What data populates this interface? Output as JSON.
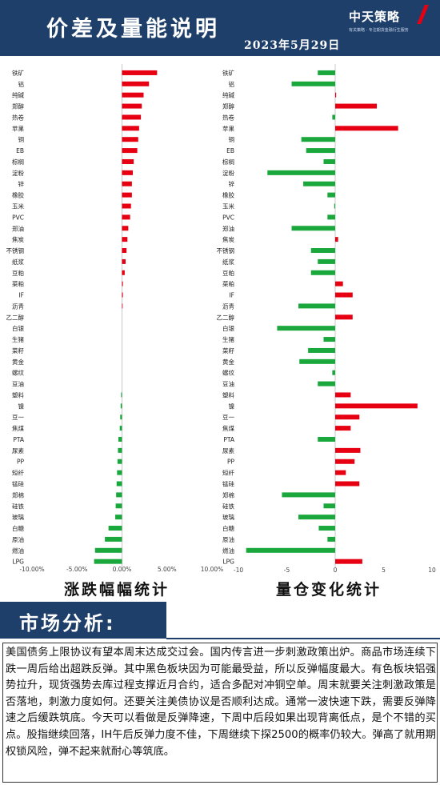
{
  "header": {
    "title": "价差及量能说明",
    "date": "2023年5月29日",
    "brand_name": "中天策略",
    "brand_slogan": "有关策略 · 专注期货金融衍生服务"
  },
  "chart_data": [
    {
      "type": "bar",
      "orientation": "horizontal",
      "title": "涨跌幅幅统计",
      "categories": [
        "铁矿",
        "铝",
        "纯碱",
        "郑醇",
        "热卷",
        "苹果",
        "铜",
        "EB",
        "棕榈",
        "淀粉",
        "锌",
        "橡胶",
        "玉米",
        "PVC",
        "郑油",
        "焦炭",
        "不锈钢",
        "纸浆",
        "豆粕",
        "菜粕",
        "IF",
        "沥青",
        "乙二醇",
        "白银",
        "生猪",
        "菜籽",
        "黄金",
        "螺纹",
        "豆油",
        "塑料",
        "镍",
        "豆一",
        "焦煤",
        "PTA",
        "尿素",
        "PP",
        "短纤",
        "锰硅",
        "郑棉",
        "硅铁",
        "玻璃",
        "白糖",
        "原油",
        "燃油",
        "LPG"
      ],
      "values": [
        3.9,
        3.0,
        2.4,
        2.2,
        2.1,
        1.9,
        1.8,
        1.7,
        1.3,
        1.2,
        1.1,
        1.1,
        1.0,
        0.9,
        0.7,
        0.6,
        0.5,
        0.4,
        0.3,
        0.1,
        0.1,
        0.05,
        0.0,
        0.0,
        0.0,
        0.0,
        0.0,
        0.0,
        0.0,
        -0.1,
        -0.15,
        -0.2,
        -0.25,
        -0.4,
        -0.45,
        -0.5,
        -0.55,
        -0.6,
        -0.65,
        -0.7,
        -0.75,
        -1.5,
        -1.9,
        -3.0,
        -3.1
      ],
      "xlim": [
        -10,
        10
      ],
      "xticks": [
        "-10.00%",
        "-5.00%",
        "0.00%",
        "5.00%",
        "10.00%"
      ],
      "colors": {
        "positive": "#e60012",
        "negative": "#1aa83c"
      },
      "grid": false
    },
    {
      "type": "bar",
      "orientation": "horizontal",
      "title": "量仓变化统计",
      "categories": [
        "铁矿",
        "铝",
        "纯碱",
        "郑醇",
        "热卷",
        "苹果",
        "铜",
        "EB",
        "棕榈",
        "淀粉",
        "锌",
        "橡胶",
        "玉米",
        "PVC",
        "郑油",
        "焦炭",
        "不锈钢",
        "纸浆",
        "豆粕",
        "菜粕",
        "IF",
        "沥青",
        "乙二醇",
        "白银",
        "生猪",
        "菜籽",
        "黄金",
        "螺纹",
        "豆油",
        "塑料",
        "镍",
        "豆一",
        "焦煤",
        "PTA",
        "尿素",
        "PP",
        "短纤",
        "锰硅",
        "郑棉",
        "硅铁",
        "玻璃",
        "白糖",
        "原油",
        "燃油",
        "LPG"
      ],
      "values": [
        -1.8,
        -4.5,
        0.1,
        4.3,
        -0.3,
        6.5,
        -3.5,
        -3.0,
        -1.2,
        -7.0,
        -3.3,
        -0.8,
        -0.1,
        -0.8,
        -4.5,
        0.3,
        -2.5,
        -1.8,
        -2.5,
        0.8,
        1.8,
        -3.8,
        1.8,
        -6.0,
        -1.2,
        -2.8,
        -3.7,
        -0.3,
        -1.8,
        1.6,
        8.5,
        2.5,
        1.6,
        -1.8,
        2.6,
        2.0,
        1.1,
        2.5,
        -5.5,
        -1.2,
        -3.8,
        -1.7,
        -0.8,
        -9.2,
        2.8
      ],
      "xlim": [
        -10,
        10
      ],
      "xticks": [
        "-10",
        "-5",
        "0",
        "5",
        "10"
      ],
      "colors": {
        "positive": "#e60012",
        "negative": "#1aa83c"
      },
      "grid": false
    }
  ],
  "section": {
    "label": "市场分析:"
  },
  "analysis": {
    "text": "美国债务上限协议有望本周末达成交过会。国内传言进一步刺激政策出炉。商品市场连续下跌一周后给出超跌反弹。其中黑色板块因为可能最受益，所以反弹幅度最大。有色板块铝强势拉升，现货强势去库过程支撑近月合约，适合多配对冲铜空单。周末就要关注刺激政策是否落地，刺激力度如何。还要关注美债协议是否顺利达成。通常一波快速下跌，需要反弹降速之后缓跌筑底。今天可以看做是反弹降速，下周中后段如果出现背离低点，是个不错的买点。股指继续回落，IH午后反弹力度不佳，下周继续下探2500的概率仍较大。弹高了就用期权锁风险，弹不起来就耐心等筑底。"
  }
}
